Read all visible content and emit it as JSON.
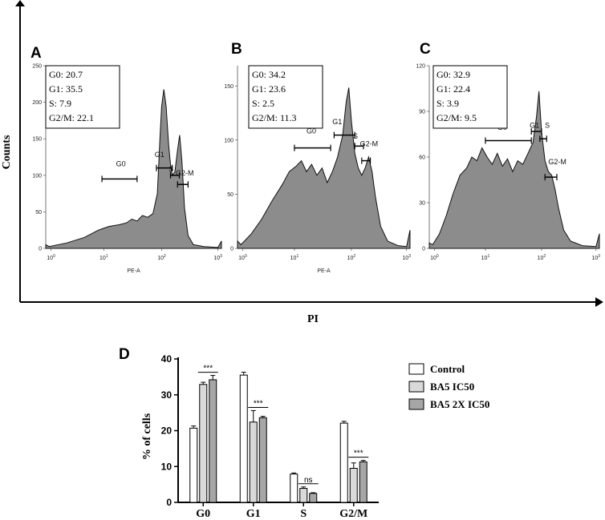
{
  "axis_titles": {
    "counts": "Counts",
    "pi": "PI"
  },
  "colors": {
    "histogram_fill": "#8c8c8c",
    "control_fill": "#ffffff",
    "ic50_fill": "#d9d9d9",
    "ic50x2_fill": "#a6a6a6"
  },
  "histograms": [
    {
      "letter": "A",
      "stats": [
        "G0: 20.7",
        "G1: 35.5",
        "S: 7.9",
        "G2/M: 22.1"
      ],
      "y_ticks": [
        "0",
        "50",
        "100",
        "150",
        "200",
        "250"
      ],
      "x_axis_label": "PE-A",
      "gates": [
        "G0",
        "G1",
        "S",
        "G2-M"
      ]
    },
    {
      "letter": "B",
      "stats": [
        "G0: 34.2",
        "G1: 23.6",
        "S: 2.5",
        "G2/M: 11.3"
      ],
      "y_ticks": [
        "0",
        "50",
        "100",
        "150"
      ],
      "x_axis_label": "PE-A",
      "gates": [
        "G0",
        "G1",
        "S",
        "G2-M"
      ]
    },
    {
      "letter": "C",
      "stats": [
        "G0: 32.9",
        "G1: 22.4",
        "S: 3.9",
        "G2/M: 9.5"
      ],
      "y_ticks": [
        "0",
        "30",
        "60",
        "90",
        "120"
      ],
      "x_axis_label": "",
      "gates": [
        "G0",
        "G1",
        "S",
        "G2-M"
      ]
    }
  ],
  "x_ticks": [
    {
      "base": "10",
      "exp": "0"
    },
    {
      "base": "10",
      "exp": "1"
    },
    {
      "base": "10",
      "exp": "2"
    },
    {
      "base": "10",
      "exp": "3"
    }
  ],
  "chart_data": {
    "type": "bar",
    "panel": "D",
    "title": "",
    "xlabel": "",
    "ylabel": "% of cells",
    "ylim": [
      0,
      40
    ],
    "yticks": [
      "0",
      "10",
      "20",
      "30",
      "40"
    ],
    "categories": [
      "G0",
      "G1",
      "S",
      "G2/M"
    ],
    "series": [
      {
        "name": "Control",
        "values": [
          20.7,
          35.5,
          7.9,
          22.1
        ],
        "errors": [
          0.6,
          0.8,
          0.3,
          0.5
        ]
      },
      {
        "name": "BA5 IC50",
        "values": [
          32.9,
          22.4,
          3.9,
          9.5
        ],
        "errors": [
          0.6,
          3.2,
          0.4,
          1.5
        ]
      },
      {
        "name": "BA5 2X IC50",
        "values": [
          34.2,
          23.6,
          2.5,
          11.3
        ],
        "errors": [
          1.2,
          0.4,
          0.2,
          0.4
        ]
      }
    ],
    "significance": [
      "***",
      "***",
      "ns",
      "***"
    ],
    "legend_position": "top-right"
  }
}
